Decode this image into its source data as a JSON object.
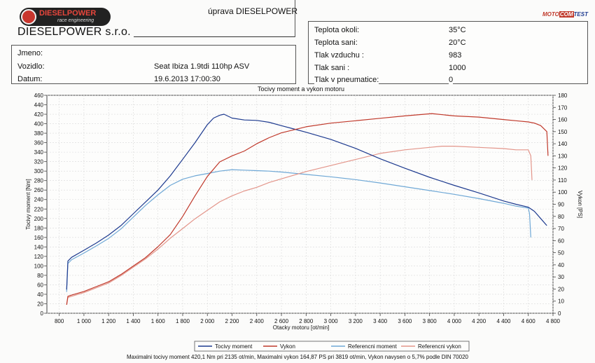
{
  "header": {
    "brand": "DIESELPOWER",
    "brand_tagline": "race engineering",
    "company": "DIESELPOWER s.r.o.",
    "work_label": "úprava DIESELPOWER",
    "test_logo": {
      "moto": "MOTO",
      "com": "COM",
      "test": "TEST"
    }
  },
  "vehicle": {
    "name_label": "Jmeno:",
    "name_value": "",
    "vehicle_label": "Vozidlo:",
    "vehicle_value": "Seat Ibiza 1.9tdi 110hp ASV",
    "date_label": "Datum:",
    "date_value": "19.6.2013 17:00:30"
  },
  "conditions": [
    {
      "label": "Teplota okoli:",
      "value": "35°C"
    },
    {
      "label": "Teplota sani:",
      "value": "20°C"
    },
    {
      "label": "Tlak vzduchu :",
      "value": "983"
    },
    {
      "label": "Tlak sani :",
      "value": "1000"
    },
    {
      "label": "Tlak v pneumatice:",
      "value": "0"
    }
  ],
  "footer": {
    "summary": "Maximalni tocivy moment 420,1 Nm pri 2135 ot/min,  Maximalni vykon 164,87 PS pri 3819 ot/min,  Vykon navysen o 5,7% podle DIN 70020"
  },
  "chart_data": {
    "type": "line",
    "title": "Tocivy moment a vykon motoru",
    "xlabel": "Otacky motoru [ot/min]",
    "ylabel": "Tocivy moment [Nm]",
    "y2label": "Vykon [PS]",
    "xlim": [
      700,
      4800
    ],
    "ylim": [
      0,
      460
    ],
    "y2lim": [
      0,
      180
    ],
    "xticks": [
      800,
      1000,
      1200,
      1400,
      1600,
      1800,
      2000,
      2200,
      2400,
      2600,
      2800,
      3000,
      3200,
      3400,
      3600,
      3800,
      4000,
      4200,
      4400,
      4600,
      4800
    ],
    "xtick_labels": [
      "800",
      "1 000",
      "1 200",
      "1 400",
      "1 600",
      "1 800",
      "2 000",
      "2 200",
      "2 400",
      "2 600",
      "2 800",
      "3 000",
      "3 200",
      "3 400",
      "3 600",
      "3 800",
      "4 000",
      "4 200",
      "4 400",
      "4 600",
      "4 800"
    ],
    "yticks": [
      0,
      20,
      40,
      60,
      80,
      100,
      120,
      140,
      160,
      180,
      200,
      220,
      240,
      260,
      280,
      300,
      320,
      340,
      360,
      380,
      400,
      420,
      440,
      460
    ],
    "y2ticks": [
      0,
      10,
      20,
      30,
      40,
      50,
      60,
      70,
      80,
      90,
      100,
      110,
      120,
      130,
      140,
      150,
      160,
      170,
      180
    ],
    "grid": true,
    "legend_position": "bottom",
    "series": [
      {
        "name": "Tocivy moment",
        "axis": "left",
        "color": "#1d3a8f",
        "x": [
          860,
          870,
          900,
          1000,
          1100,
          1200,
          1300,
          1400,
          1500,
          1600,
          1700,
          1800,
          1900,
          2000,
          2050,
          2100,
          2135,
          2200,
          2300,
          2400,
          2500,
          2600,
          2700,
          2800,
          3000,
          3200,
          3400,
          3600,
          3800,
          4000,
          4200,
          4400,
          4500,
          4600,
          4650,
          4700,
          4750
        ],
        "y": [
          50,
          110,
          118,
          133,
          148,
          165,
          185,
          210,
          235,
          260,
          290,
          325,
          360,
          398,
          412,
          418,
          420,
          412,
          408,
          407,
          403,
          396,
          389,
          382,
          367,
          348,
          326,
          306,
          287,
          270,
          254,
          237,
          230,
          224,
          215,
          200,
          185
        ]
      },
      {
        "name": "Vykon",
        "axis": "right",
        "color": "#c0392b",
        "x": [
          860,
          870,
          900,
          1000,
          1100,
          1200,
          1300,
          1400,
          1500,
          1600,
          1700,
          1800,
          1900,
          2000,
          2100,
          2200,
          2300,
          2400,
          2500,
          2600,
          2800,
          3000,
          3200,
          3400,
          3600,
          3819,
          4000,
          4200,
          4400,
          4500,
          4600,
          4650,
          4700,
          4750,
          4760
        ],
        "y": [
          7,
          14,
          15,
          18,
          22,
          26,
          32,
          39,
          46,
          55,
          65,
          80,
          97,
          113,
          125,
          130,
          134,
          140,
          145,
          149,
          154,
          157,
          159,
          161,
          163,
          164.87,
          163,
          162,
          160,
          159,
          158,
          157,
          155,
          150,
          130
        ]
      },
      {
        "name": "Referencni moment",
        "axis": "left",
        "color": "#6fa8d6",
        "x": [
          860,
          870,
          900,
          1000,
          1100,
          1200,
          1300,
          1400,
          1500,
          1600,
          1700,
          1800,
          1900,
          2000,
          2100,
          2200,
          2300,
          2400,
          2500,
          2600,
          2800,
          3000,
          3200,
          3400,
          3600,
          3800,
          4000,
          4200,
          4400,
          4500,
          4600,
          4610,
          4620
        ],
        "y": [
          45,
          105,
          113,
          127,
          142,
          158,
          178,
          203,
          228,
          250,
          270,
          283,
          290,
          295,
          300,
          303,
          302,
          301,
          300,
          298,
          293,
          288,
          282,
          275,
          267,
          259,
          251,
          242,
          232,
          226,
          222,
          210,
          160
        ]
      },
      {
        "name": "Referencni vykon",
        "axis": "right",
        "color": "#e3958a",
        "x": [
          860,
          870,
          900,
          1000,
          1100,
          1200,
          1300,
          1400,
          1500,
          1600,
          1700,
          1800,
          1900,
          2000,
          2100,
          2200,
          2300,
          2400,
          2500,
          2600,
          2800,
          3000,
          3200,
          3400,
          3600,
          3800,
          3900,
          4000,
          4200,
          4400,
          4500,
          4600,
          4620,
          4630
        ],
        "y": [
          7,
          13,
          14,
          17,
          21,
          25,
          31,
          38,
          45,
          53,
          62,
          70,
          78,
          85,
          92,
          97,
          101,
          104,
          108,
          111,
          117,
          122,
          127,
          132,
          135,
          137,
          138,
          138,
          137,
          136,
          135,
          135,
          130,
          110
        ]
      }
    ]
  }
}
